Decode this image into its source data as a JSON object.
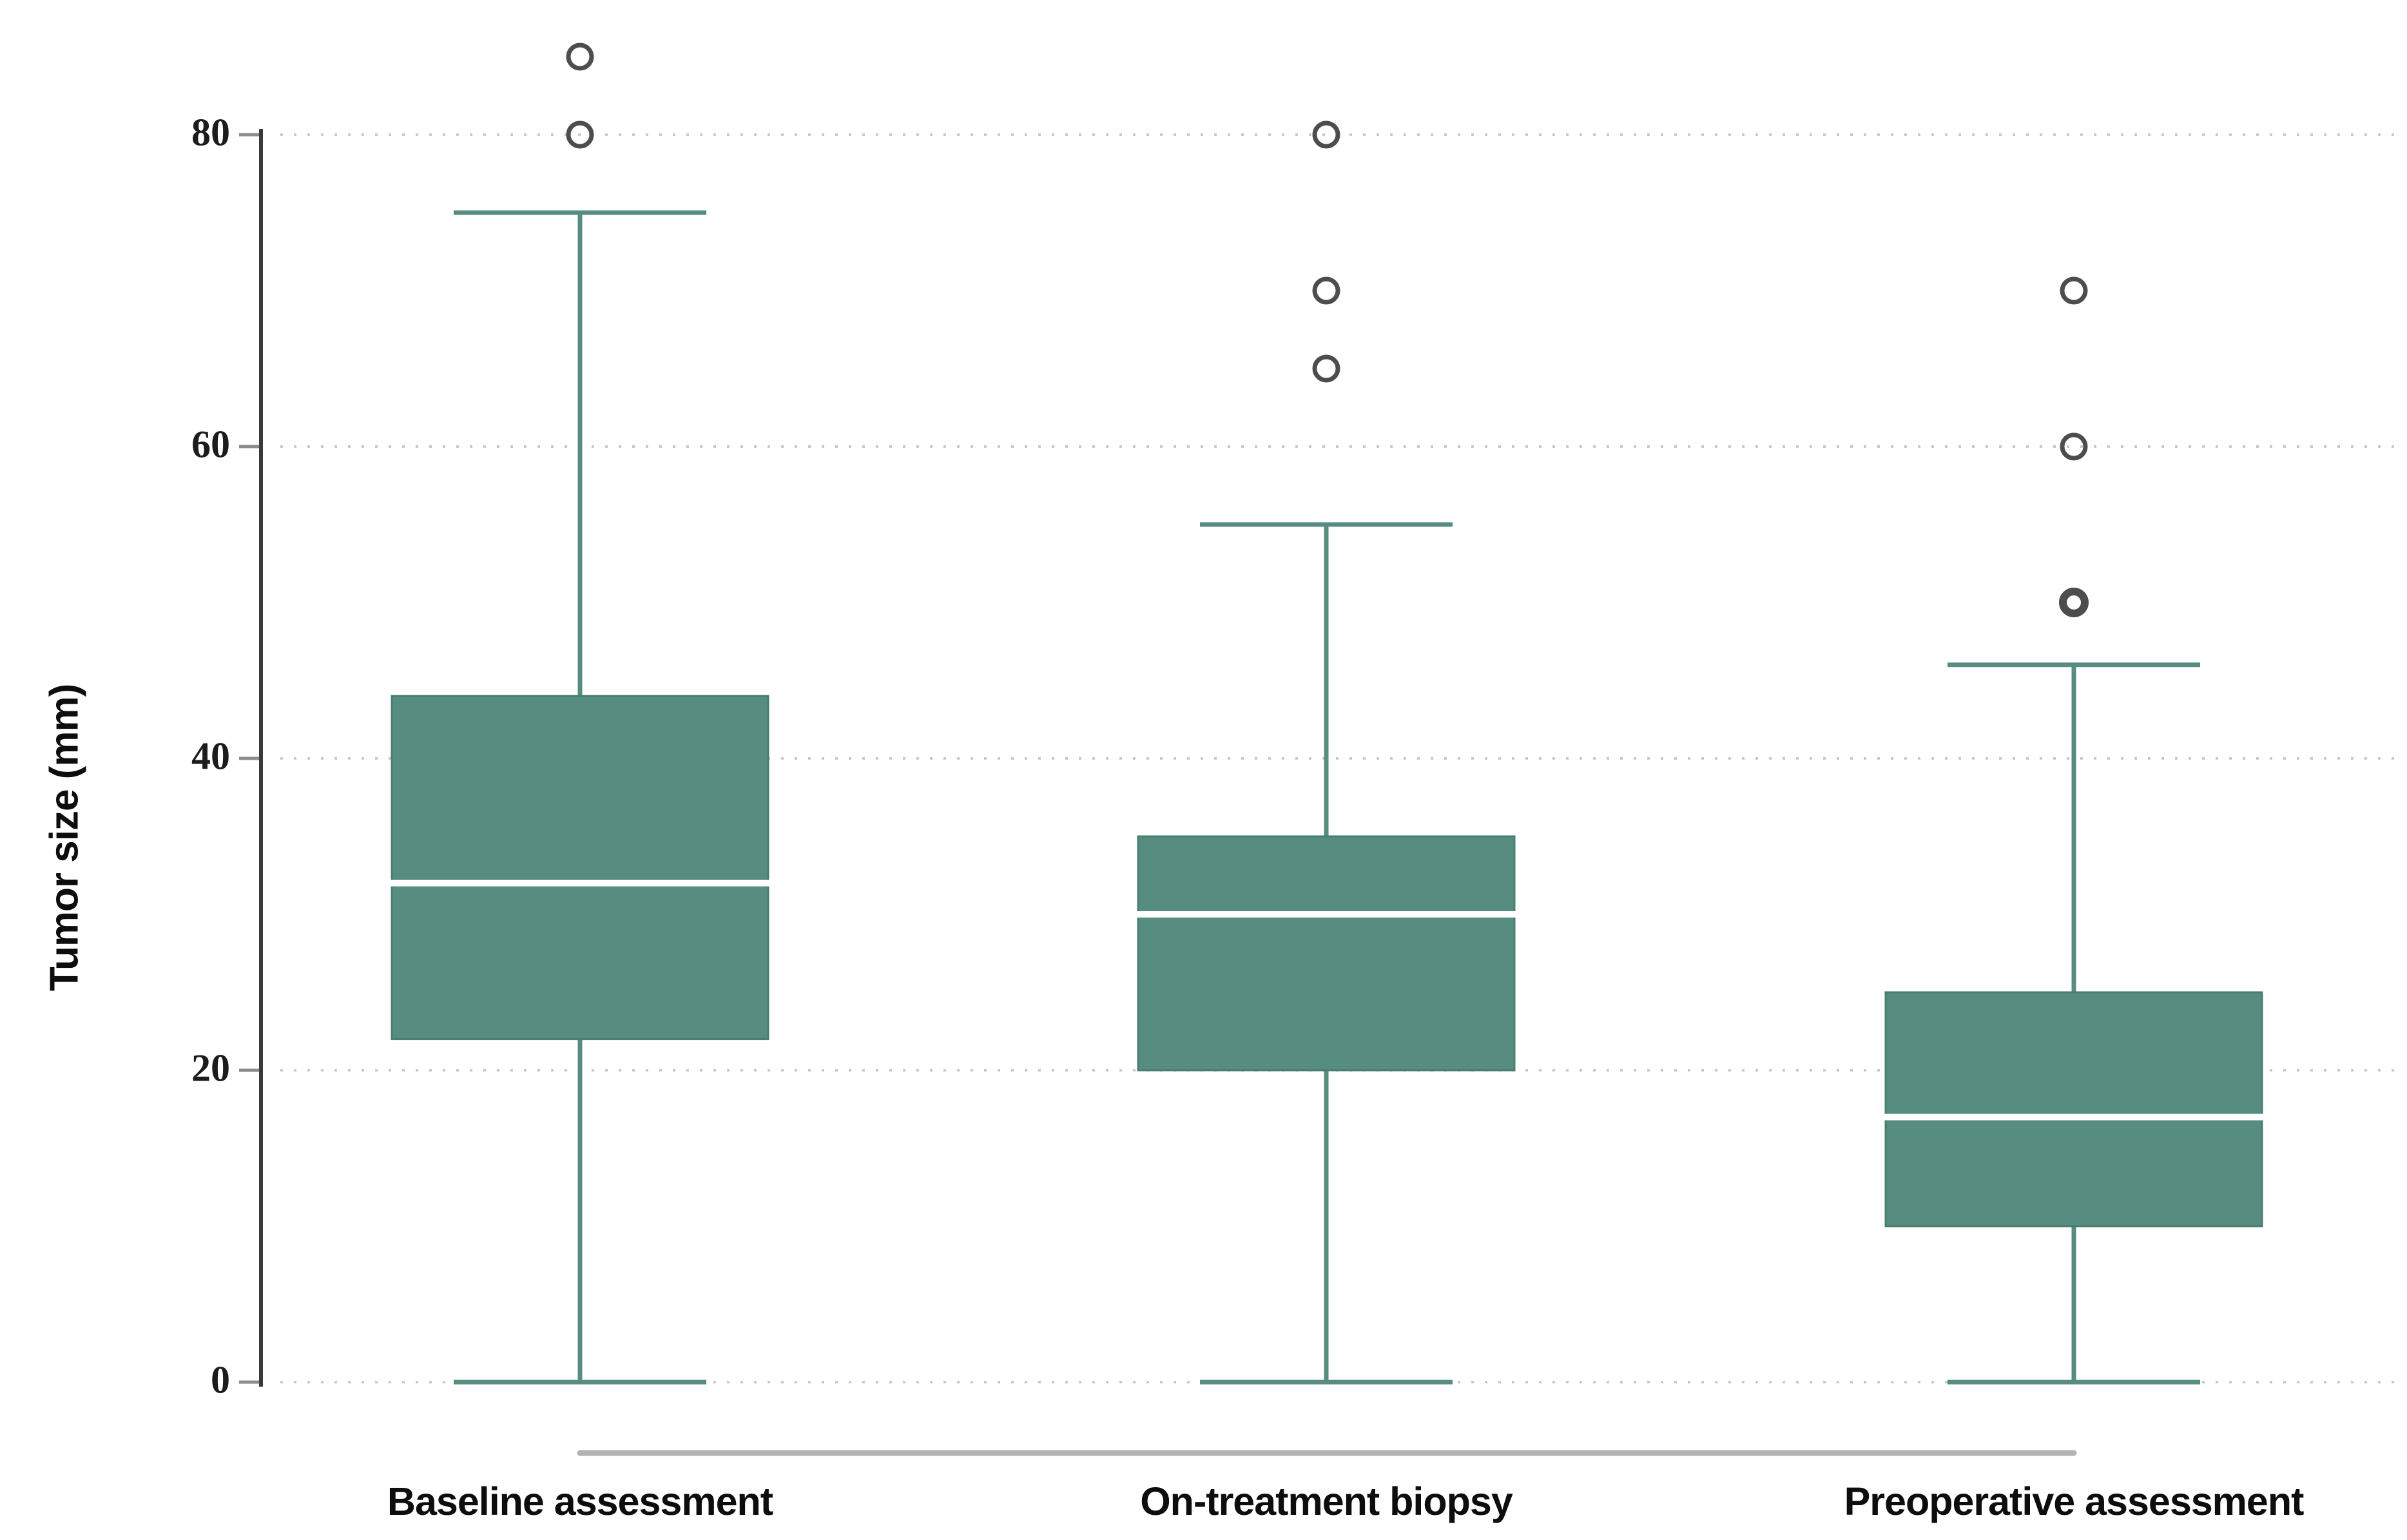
{
  "chart_data": {
    "type": "boxplot",
    "title": "",
    "xlabel": "",
    "ylabel": "Tumor size (mm)",
    "ylim": [
      0,
      88
    ],
    "yticks": [
      0,
      20,
      40,
      60,
      80
    ],
    "grid": "horizontal dotted lines at each y tick, on",
    "legend": "none",
    "categories": [
      "Baseline assessment",
      "On-treatment biopsy",
      "Preoperative assessment"
    ],
    "series": [
      {
        "name": "Baseline assessment",
        "whisker_low": 0,
        "q1": 22,
        "median": 32,
        "q3": 44,
        "whisker_high": 75,
        "outliers": [
          80,
          85
        ]
      },
      {
        "name": "On-treatment biopsy",
        "whisker_low": 0,
        "q1": 20,
        "median": 30,
        "q3": 35,
        "whisker_high": 55,
        "outliers": [
          65,
          70,
          80
        ]
      },
      {
        "name": "Preoperative assessment",
        "whisker_low": 0,
        "q1": 10,
        "median": 17,
        "q3": 25,
        "whisker_high": 46,
        "outliers": [
          50,
          60,
          70
        ],
        "double_ring_outlier": 50
      }
    ],
    "annotation_line": {
      "from": "Baseline assessment",
      "to": "Preoperative assessment",
      "position": "horizontal bar below x axis",
      "color": "#b3b3b3"
    }
  },
  "style": {
    "background": "#ffffff",
    "box_fill": "#578c80",
    "box_border": "#4a7d72",
    "whisker_color": "#578c80",
    "median_color": "#ffffff",
    "outlier_stroke": "#4d4d4d",
    "grid_color": "#c9c9c9",
    "axis_color": "#3a3a3a",
    "tick_color": "#8c8c8c",
    "tick_label_color": "#1c1c1c",
    "category_label_color": "#0d0d0d",
    "comparison_line_color": "#b3b3b3"
  }
}
